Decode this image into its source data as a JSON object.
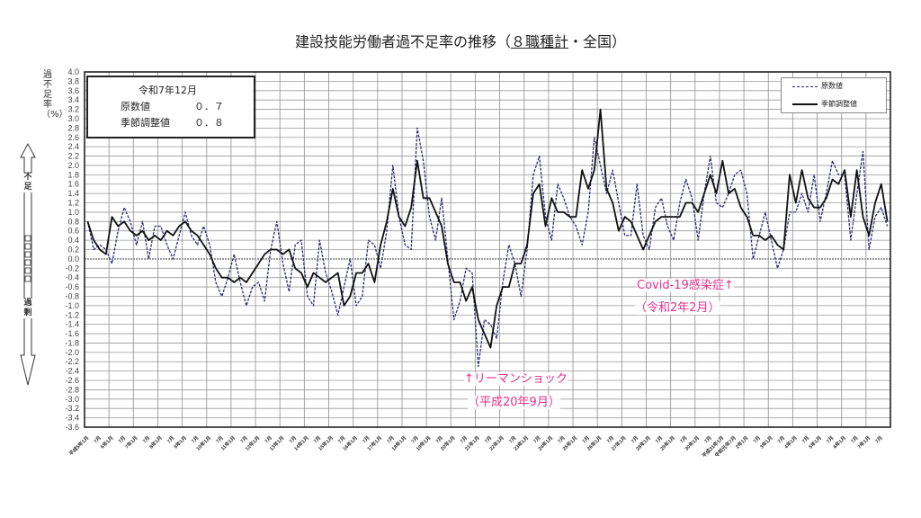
{
  "chart_data": {
    "type": "line",
    "title_main": "建設技能労働者過不足率の推移（",
    "title_underlined": "８職種計",
    "title_tail": "・全国）",
    "ylabel": "過不足率（%）",
    "ylim": [
      -3.6,
      4.0
    ],
    "ytick_step": 0.2,
    "grid": true,
    "legend_position": "top-right",
    "side_labels": {
      "upper": "不足",
      "lower": "過剰"
    },
    "x_start": "1993-01",
    "x_end": "2025-12",
    "point_interval_months": 3,
    "x_tick_labels": [
      "平成5年1月",
      "7月",
      "6年1月",
      "7月",
      "7年1月",
      "7月",
      "8年1月",
      "7月",
      "9年1月",
      "7月",
      "10年1月",
      "7月",
      "11年1月",
      "7月",
      "12年1月",
      "7月",
      "13年1月",
      "7月",
      "14年1月",
      "7月",
      "15年1月",
      "7月",
      "16年1月",
      "7月",
      "17年1月",
      "7月",
      "18年1月",
      "7月",
      "19年1月",
      "7月",
      "20年1月",
      "7月",
      "21年1月",
      "7月",
      "22年1月",
      "7月",
      "23年1月",
      "7月",
      "24年1月",
      "7月",
      "25年1月",
      "7月",
      "26年1月",
      "7月",
      "27年1月",
      "7月",
      "28年1月",
      "7月",
      "29年1月",
      "7月",
      "30年1月",
      "7月",
      "平成31年1月",
      "令和元年7月",
      "2年1月",
      "7月",
      "3年1月",
      "7月",
      "4年1月",
      "7月",
      "5年1月",
      "7月",
      "6年1月",
      "7月",
      "7年1月",
      "7月"
    ],
    "series": [
      {
        "name": "原数値",
        "style": "dashed",
        "color": "#2a2a7a",
        "values": [
          0.8,
          0.2,
          0.3,
          0.2,
          -0.1,
          0.6,
          1.1,
          0.8,
          0.3,
          0.8,
          0.0,
          0.7,
          0.7,
          0.3,
          0.0,
          0.5,
          1.0,
          0.5,
          0.3,
          0.7,
          0.3,
          -0.5,
          -0.8,
          -0.4,
          0.1,
          -0.5,
          -1.0,
          -0.6,
          -0.5,
          -0.9,
          0.2,
          0.8,
          -0.1,
          -0.7,
          0.3,
          0.4,
          -0.8,
          -1.0,
          0.4,
          -0.3,
          -0.7,
          -1.2,
          -0.6,
          0.0,
          -1.0,
          -0.8,
          0.4,
          0.3,
          -0.2,
          0.6,
          2.0,
          0.9,
          0.3,
          0.2,
          2.8,
          2.1,
          0.9,
          0.4,
          1.3,
          0.0,
          -1.3,
          -0.9,
          -0.2,
          -0.3,
          -2.3,
          -1.3,
          -1.4,
          -1.7,
          -0.5,
          0.3,
          -0.1,
          -0.8,
          0.2,
          1.8,
          2.2,
          0.9,
          0.4,
          1.6,
          1.3,
          0.9,
          0.7,
          0.3,
          1.0,
          2.6,
          2.0,
          1.4,
          1.9,
          1.2,
          0.5,
          0.5,
          1.6,
          0.5,
          0.2,
          1.1,
          1.3,
          0.7,
          0.4,
          1.2,
          1.7,
          1.3,
          0.4,
          1.4,
          2.2,
          1.2,
          1.1,
          1.4,
          1.8,
          1.9,
          1.4,
          0.0,
          0.5,
          1.0,
          0.4,
          -0.2,
          0.2,
          1.0,
          1.0,
          1.4,
          1.0,
          1.8,
          0.8,
          1.4,
          2.1,
          1.8,
          1.8,
          0.4,
          1.4,
          2.3,
          0.2,
          0.9,
          1.1,
          0.7
        ]
      },
      {
        "name": "季節調整値",
        "style": "solid",
        "color": "#111111",
        "values": [
          0.8,
          0.4,
          0.2,
          0.1,
          0.9,
          0.7,
          0.8,
          0.6,
          0.5,
          0.6,
          0.4,
          0.5,
          0.4,
          0.6,
          0.5,
          0.7,
          0.8,
          0.6,
          0.5,
          0.3,
          0.1,
          -0.2,
          -0.4,
          -0.4,
          -0.5,
          -0.4,
          -0.5,
          -0.3,
          -0.1,
          0.1,
          0.2,
          0.2,
          0.1,
          0.2,
          -0.2,
          -0.3,
          -0.6,
          -0.3,
          -0.4,
          -0.5,
          -0.4,
          -0.3,
          -1.0,
          -0.8,
          -0.3,
          -0.3,
          -0.1,
          -0.5,
          0.3,
          0.8,
          1.5,
          0.9,
          0.7,
          1.1,
          2.1,
          1.3,
          1.3,
          1.0,
          0.7,
          -0.1,
          -0.5,
          -0.5,
          -0.9,
          -0.6,
          -1.3,
          -1.6,
          -1.9,
          -1.0,
          -0.6,
          -0.6,
          -0.1,
          -0.1,
          0.3,
          1.4,
          1.6,
          0.7,
          1.3,
          1.0,
          1.0,
          0.9,
          0.9,
          1.9,
          1.5,
          1.9,
          3.2,
          1.5,
          1.2,
          0.6,
          0.9,
          0.8,
          0.5,
          0.2,
          0.5,
          0.8,
          0.9,
          0.9,
          0.9,
          0.9,
          1.2,
          1.2,
          1.0,
          1.4,
          1.8,
          1.4,
          2.1,
          1.4,
          1.5,
          1.1,
          0.9,
          0.5,
          0.5,
          0.4,
          0.5,
          0.3,
          0.2,
          1.8,
          1.2,
          1.9,
          1.3,
          1.1,
          1.1,
          1.3,
          1.7,
          1.6,
          1.9,
          0.9,
          1.9,
          0.9,
          0.5,
          1.2,
          1.6,
          0.8
        ]
      }
    ],
    "latest_box": {
      "period": "令和7年12月",
      "raw_label": "原数値",
      "raw_value": "０．７",
      "adj_label": "季節調整値",
      "adj_value": "０．８"
    },
    "annotations": [
      {
        "line1": "↑リーマンショック",
        "line2": "（平成20年9月）"
      },
      {
        "line1": "Covid-19感染症↑",
        "line2": "（令和2年2月）"
      }
    ],
    "annotation_color": "#e8308a"
  }
}
